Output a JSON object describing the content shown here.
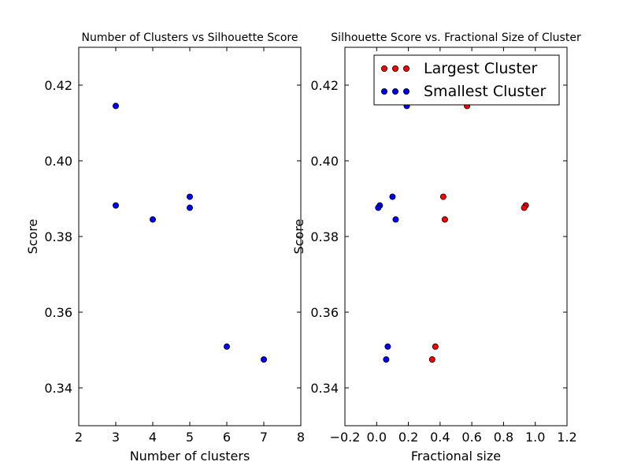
{
  "chart_data": [
    {
      "type": "scatter",
      "title": "Number of Clusters vs Silhouette Score",
      "xlabel": "Number of clusters",
      "ylabel": "Score",
      "xlim": [
        2,
        8
      ],
      "ylim": [
        0.33,
        0.43
      ],
      "xticks": [
        2,
        3,
        4,
        5,
        6,
        7,
        8
      ],
      "xtick_labels": [
        "2",
        "3",
        "4",
        "5",
        "6",
        "7",
        "8"
      ],
      "yticks": [
        0.34,
        0.36,
        0.38,
        0.4,
        0.42
      ],
      "ytick_labels": [
        "0.34",
        "0.36",
        "0.38",
        "0.40",
        "0.42"
      ],
      "grid": false,
      "series": [
        {
          "color": "#0000ff",
          "x": [
            3,
            3,
            4,
            5,
            5,
            6,
            7
          ],
          "y": [
            0.4145,
            0.3882,
            0.3845,
            0.3905,
            0.3876,
            0.3509,
            0.3475
          ]
        }
      ]
    },
    {
      "type": "scatter",
      "title": "Silhouette Score vs. Fractional Size of Cluster",
      "xlabel": "Fractional size",
      "ylabel": "Score",
      "xlim": [
        -0.2,
        1.2
      ],
      "ylim": [
        0.33,
        0.43
      ],
      "xticks": [
        -0.2,
        0.0,
        0.2,
        0.4,
        0.6,
        0.8,
        1.0,
        1.2
      ],
      "xtick_labels": [
        "−0.2",
        "0.0",
        "0.2",
        "0.4",
        "0.6",
        "0.8",
        "1.0",
        "1.2"
      ],
      "yticks": [
        0.34,
        0.36,
        0.38,
        0.4,
        0.42
      ],
      "ytick_labels": [
        "0.34",
        "0.36",
        "0.38",
        "0.40",
        "0.42"
      ],
      "grid": false,
      "legend": "top-right",
      "series": [
        {
          "name": "Largest Cluster",
          "color": "#ff0000",
          "x": [
            0.57,
            0.94,
            0.42,
            0.93,
            0.43,
            0.37,
            0.35
          ],
          "y": [
            0.4145,
            0.3882,
            0.3905,
            0.3876,
            0.3845,
            0.3509,
            0.3475
          ]
        },
        {
          "name": "Smallest Cluster",
          "color": "#0000ff",
          "x": [
            0.19,
            0.02,
            0.1,
            0.01,
            0.12,
            0.07,
            0.06
          ],
          "y": [
            0.4145,
            0.3882,
            0.3905,
            0.3876,
            0.3845,
            0.3509,
            0.3475
          ]
        }
      ]
    }
  ]
}
